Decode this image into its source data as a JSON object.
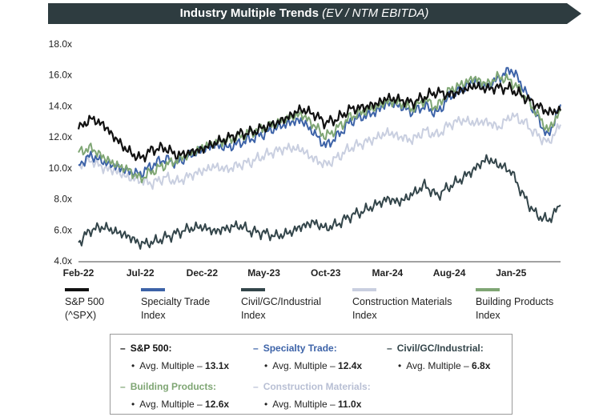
{
  "title": {
    "main": "Industry Multiple Trends",
    "sub": "(EV / NTM EBITDA)"
  },
  "colors": {
    "banner": "#2e3c40",
    "sp500": "#111111",
    "specialty": "#3d63a8",
    "civil": "#33454a",
    "construction": "#c9cfe0",
    "building": "#7fa674"
  },
  "chart_data": {
    "type": "line",
    "title": "Industry Multiple Trends (EV / NTM EBITDA)",
    "xlabel": "",
    "ylabel": "",
    "ylim": [
      4.0,
      18.0
    ],
    "y_ticks": [
      "4.0x",
      "6.0x",
      "8.0x",
      "10.0x",
      "12.0x",
      "14.0x",
      "16.0x",
      "18.0x"
    ],
    "x_ticks": [
      "Feb-22",
      "Jul-22",
      "Dec-22",
      "May-23",
      "Oct-23",
      "Mar-24",
      "Aug-24",
      "Jan-25"
    ],
    "x_months_from_feb22": [
      0,
      5,
      10,
      15,
      20,
      25,
      30,
      35
    ],
    "x_range_months": [
      0,
      39
    ],
    "series": [
      {
        "key": "sp500",
        "name": "S&P 500 (^SPX)",
        "points": [
          [
            0,
            12.5
          ],
          [
            1,
            13.2
          ],
          [
            2,
            12.8
          ],
          [
            3,
            11.9
          ],
          [
            4,
            11.1
          ],
          [
            5,
            10.6
          ],
          [
            6,
            11.2
          ],
          [
            7,
            11.3
          ],
          [
            8,
            10.8
          ],
          [
            9,
            11.0
          ],
          [
            10,
            11.2
          ],
          [
            11,
            11.6
          ],
          [
            12,
            11.9
          ],
          [
            13,
            12.2
          ],
          [
            14,
            12.3
          ],
          [
            15,
            12.6
          ],
          [
            16,
            12.9
          ],
          [
            17,
            13.3
          ],
          [
            18,
            13.8
          ],
          [
            19,
            13.5
          ],
          [
            20,
            12.9
          ],
          [
            21,
            13.2
          ],
          [
            22,
            13.8
          ],
          [
            23,
            13.9
          ],
          [
            24,
            14.1
          ],
          [
            25,
            14.5
          ],
          [
            26,
            14.4
          ],
          [
            27,
            14.2
          ],
          [
            28,
            14.6
          ],
          [
            29,
            14.9
          ],
          [
            30,
            14.7
          ],
          [
            31,
            15.0
          ],
          [
            32,
            15.3
          ],
          [
            33,
            15.1
          ],
          [
            34,
            15.2
          ],
          [
            35,
            15.1
          ],
          [
            36,
            14.6
          ],
          [
            37,
            14.1
          ],
          [
            38,
            13.6
          ],
          [
            39,
            13.7
          ]
        ]
      },
      {
        "key": "specialty",
        "name": "Specialty Trade Index",
        "points": [
          [
            0,
            10.2
          ],
          [
            1,
            10.8
          ],
          [
            2,
            10.4
          ],
          [
            3,
            10.1
          ],
          [
            4,
            9.8
          ],
          [
            5,
            9.6
          ],
          [
            6,
            10.2
          ],
          [
            7,
            10.6
          ],
          [
            8,
            10.3
          ],
          [
            9,
            10.8
          ],
          [
            10,
            11.2
          ],
          [
            11,
            11.5
          ],
          [
            12,
            11.3
          ],
          [
            13,
            11.6
          ],
          [
            14,
            11.9
          ],
          [
            15,
            12.2
          ],
          [
            16,
            12.6
          ],
          [
            17,
            12.9
          ],
          [
            18,
            13.1
          ],
          [
            19,
            12.3
          ],
          [
            20,
            11.4
          ],
          [
            21,
            12.1
          ],
          [
            22,
            13.0
          ],
          [
            23,
            13.3
          ],
          [
            24,
            13.6
          ],
          [
            25,
            14.2
          ],
          [
            26,
            14.0
          ],
          [
            27,
            13.6
          ],
          [
            28,
            14.0
          ],
          [
            29,
            13.5
          ],
          [
            30,
            14.6
          ],
          [
            31,
            15.1
          ],
          [
            32,
            15.6
          ],
          [
            33,
            15.2
          ],
          [
            34,
            15.8
          ],
          [
            35,
            16.4
          ],
          [
            36,
            15.2
          ],
          [
            37,
            13.4
          ],
          [
            38,
            12.0
          ],
          [
            39,
            14.1
          ]
        ]
      },
      {
        "key": "civil",
        "name": "Civil/GC/Industrial Index",
        "points": [
          [
            0,
            5.2
          ],
          [
            1,
            6.0
          ],
          [
            2,
            6.2
          ],
          [
            3,
            5.9
          ],
          [
            4,
            5.6
          ],
          [
            5,
            5.1
          ],
          [
            6,
            5.2
          ],
          [
            7,
            5.5
          ],
          [
            8,
            5.8
          ],
          [
            9,
            6.1
          ],
          [
            10,
            6.2
          ],
          [
            11,
            5.9
          ],
          [
            12,
            6.1
          ],
          [
            13,
            6.3
          ],
          [
            14,
            5.9
          ],
          [
            15,
            5.8
          ],
          [
            16,
            5.6
          ],
          [
            17,
            5.8
          ],
          [
            18,
            6.2
          ],
          [
            19,
            6.5
          ],
          [
            20,
            6.1
          ],
          [
            21,
            6.4
          ],
          [
            22,
            6.9
          ],
          [
            23,
            7.2
          ],
          [
            24,
            7.6
          ],
          [
            25,
            8.0
          ],
          [
            26,
            7.8
          ],
          [
            27,
            8.3
          ],
          [
            28,
            8.9
          ],
          [
            29,
            8.2
          ],
          [
            30,
            8.8
          ],
          [
            31,
            9.3
          ],
          [
            32,
            9.9
          ],
          [
            33,
            10.6
          ],
          [
            34,
            10.2
          ],
          [
            35,
            9.8
          ],
          [
            36,
            8.2
          ],
          [
            37,
            7.0
          ],
          [
            38,
            6.6
          ],
          [
            39,
            7.6
          ]
        ]
      },
      {
        "key": "construction",
        "name": "Construction Materials Index",
        "points": [
          [
            0,
            10.2
          ],
          [
            1,
            10.5
          ],
          [
            2,
            10.0
          ],
          [
            3,
            9.8
          ],
          [
            4,
            9.4
          ],
          [
            5,
            9.2
          ],
          [
            6,
            9.0
          ],
          [
            7,
            9.4
          ],
          [
            8,
            9.1
          ],
          [
            9,
            9.5
          ],
          [
            10,
            9.8
          ],
          [
            11,
            10.1
          ],
          [
            12,
            9.9
          ],
          [
            13,
            10.2
          ],
          [
            14,
            10.4
          ],
          [
            15,
            10.8
          ],
          [
            16,
            11.1
          ],
          [
            17,
            11.3
          ],
          [
            18,
            11.2
          ],
          [
            19,
            10.6
          ],
          [
            20,
            10.2
          ],
          [
            21,
            10.7
          ],
          [
            22,
            11.3
          ],
          [
            23,
            11.6
          ],
          [
            24,
            11.9
          ],
          [
            25,
            12.3
          ],
          [
            26,
            12.0
          ],
          [
            27,
            11.8
          ],
          [
            28,
            12.4
          ],
          [
            29,
            12.1
          ],
          [
            30,
            12.8
          ],
          [
            31,
            13.1
          ],
          [
            32,
            12.9
          ],
          [
            33,
            13.0
          ],
          [
            34,
            12.6
          ],
          [
            35,
            13.4
          ],
          [
            36,
            13.0
          ],
          [
            37,
            12.2
          ],
          [
            38,
            11.6
          ],
          [
            39,
            12.8
          ]
        ]
      },
      {
        "key": "building",
        "name": "Building Products Index",
        "points": [
          [
            0,
            11.0
          ],
          [
            1,
            11.3
          ],
          [
            2,
            10.7
          ],
          [
            3,
            10.2
          ],
          [
            4,
            9.9
          ],
          [
            5,
            9.3
          ],
          [
            6,
            9.8
          ],
          [
            7,
            10.2
          ],
          [
            8,
            10.5
          ],
          [
            9,
            10.9
          ],
          [
            10,
            11.3
          ],
          [
            11,
            11.6
          ],
          [
            12,
            11.8
          ],
          [
            13,
            12.0
          ],
          [
            14,
            12.3
          ],
          [
            15,
            12.6
          ],
          [
            16,
            12.9
          ],
          [
            17,
            13.2
          ],
          [
            18,
            13.5
          ],
          [
            19,
            12.8
          ],
          [
            20,
            12.0
          ],
          [
            21,
            12.6
          ],
          [
            22,
            13.3
          ],
          [
            23,
            13.6
          ],
          [
            24,
            13.9
          ],
          [
            25,
            14.3
          ],
          [
            26,
            14.2
          ],
          [
            27,
            13.8
          ],
          [
            28,
            14.4
          ],
          [
            29,
            13.9
          ],
          [
            30,
            15.0
          ],
          [
            31,
            15.4
          ],
          [
            32,
            15.8
          ],
          [
            33,
            15.4
          ],
          [
            34,
            15.9
          ],
          [
            35,
            15.6
          ],
          [
            36,
            14.8
          ],
          [
            37,
            13.6
          ],
          [
            38,
            12.4
          ],
          [
            39,
            13.7
          ]
        ]
      }
    ]
  },
  "legend": [
    {
      "key": "sp500",
      "line1": "S&P 500",
      "line2": "(^SPX)"
    },
    {
      "key": "specialty",
      "line1": "Specialty Trade",
      "line2": "Index"
    },
    {
      "key": "civil",
      "line1": "Civil/GC/Industrial",
      "line2": "Index"
    },
    {
      "key": "construction",
      "line1": "Construction Materials",
      "line2": "Index"
    },
    {
      "key": "building",
      "line1": "Building Products",
      "line2": "Index"
    }
  ],
  "summary": {
    "dash": "–",
    "bullet": "•",
    "avg_label": "Avg. Multiple – ",
    "items": [
      {
        "key": "sp500",
        "heading": "S&P 500:",
        "value": "13.1x"
      },
      {
        "key": "specialty",
        "heading": "Specialty Trade:",
        "value": "12.4x"
      },
      {
        "key": "civil",
        "heading": "Civil/GC/Industrial:",
        "value": "6.8x"
      },
      {
        "key": "building",
        "heading": "Building Products:",
        "value": "12.6x"
      },
      {
        "key": "construction",
        "heading": "Construction Materials:",
        "value": "11.0x"
      }
    ]
  }
}
